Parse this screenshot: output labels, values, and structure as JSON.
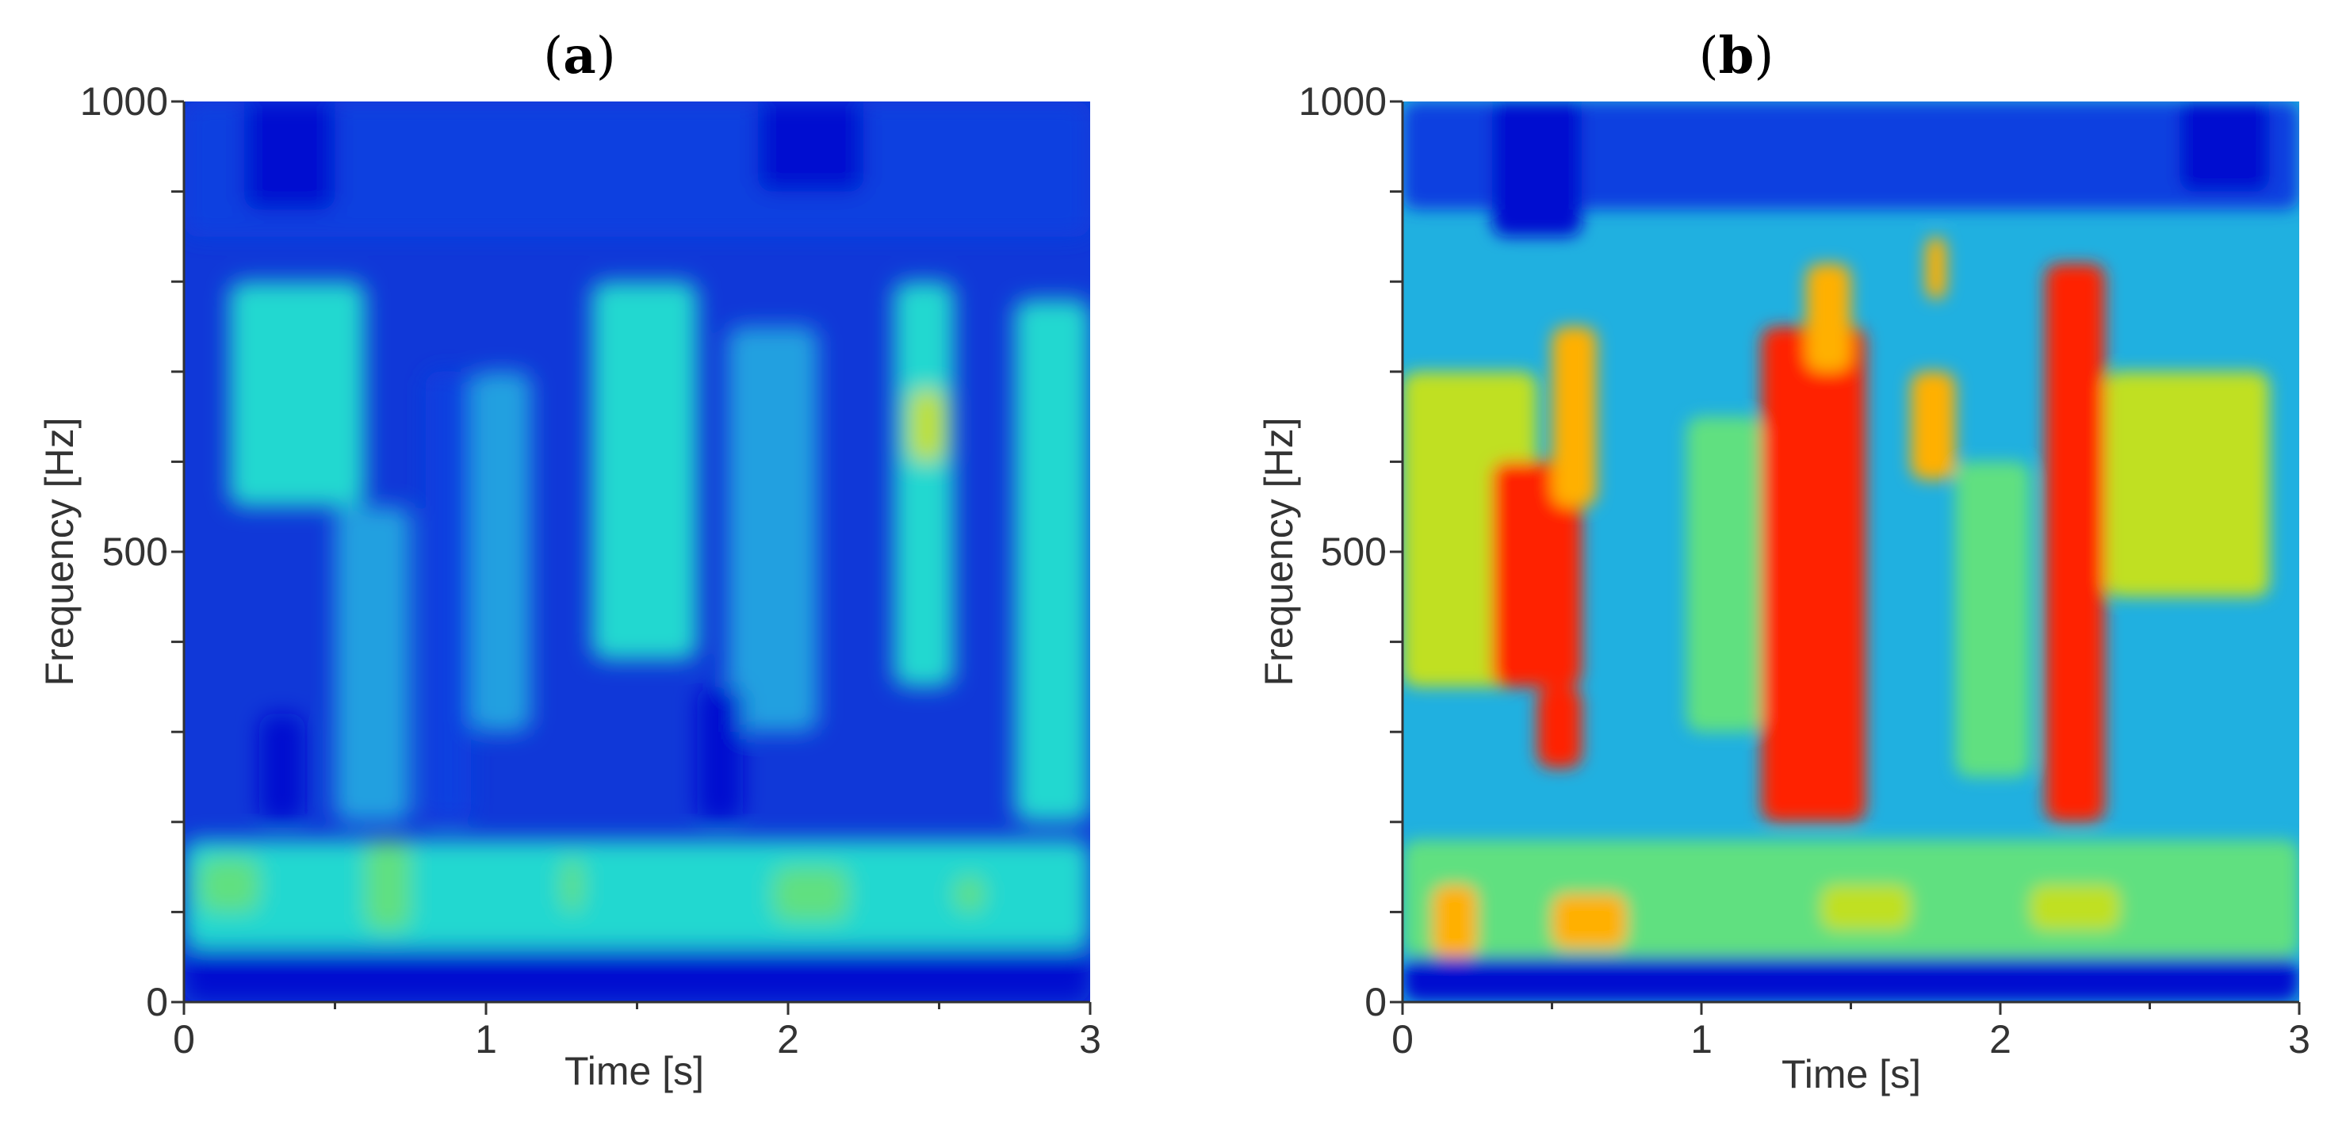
{
  "chart_data": [
    {
      "type": "heatmap",
      "panel_label": "a",
      "xlabel": "Time [s]",
      "ylabel": "Frequency [Hz]",
      "xlim": [
        0,
        3
      ],
      "ylim": [
        0,
        1000
      ],
      "xticks": [
        0,
        1,
        2,
        3
      ],
      "yticks": [
        0,
        500,
        1000
      ],
      "x_tick_labels": [
        "0",
        "1",
        "2",
        "3"
      ],
      "y_tick_labels": [
        "0",
        "500",
        "1000"
      ],
      "colormap": [
        "#0010d0",
        "#1040e0",
        "#20a0e0",
        "#20d8d0",
        "#60e080",
        "#c0e020",
        "#ffb000",
        "#ff2000"
      ],
      "background_color": "#1038d8",
      "regions": [
        {
          "t": [
            0.0,
            3.0
          ],
          "f": [
            0,
            60
          ],
          "level": 0.05
        },
        {
          "t": [
            0.0,
            3.0
          ],
          "f": [
            60,
            180
          ],
          "level": 0.38
        },
        {
          "t": [
            0.05,
            0.25
          ],
          "f": [
            100,
            160
          ],
          "level": 0.5
        },
        {
          "t": [
            0.6,
            0.75
          ],
          "f": [
            80,
            180
          ],
          "level": 0.55
        },
        {
          "t": [
            1.25,
            1.32
          ],
          "f": [
            100,
            160
          ],
          "level": 0.55
        },
        {
          "t": [
            1.95,
            2.2
          ],
          "f": [
            90,
            150
          ],
          "level": 0.6
        },
        {
          "t": [
            2.55,
            2.65
          ],
          "f": [
            100,
            140
          ],
          "level": 0.5
        },
        {
          "t": [
            0.15,
            0.6
          ],
          "f": [
            550,
            800
          ],
          "level": 0.38
        },
        {
          "t": [
            0.5,
            0.75
          ],
          "f": [
            200,
            550
          ],
          "level": 0.35
        },
        {
          "t": [
            0.95,
            1.15
          ],
          "f": [
            300,
            700
          ],
          "level": 0.3
        },
        {
          "t": [
            1.35,
            1.7
          ],
          "f": [
            380,
            800
          ],
          "level": 0.4
        },
        {
          "t": [
            1.8,
            2.1
          ],
          "f": [
            300,
            750
          ],
          "level": 0.32
        },
        {
          "t": [
            2.35,
            2.55
          ],
          "f": [
            350,
            800
          ],
          "level": 0.45
        },
        {
          "t": [
            2.4,
            2.52
          ],
          "f": [
            600,
            680
          ],
          "level": 0.65
        },
        {
          "t": [
            2.75,
            3.0
          ],
          "f": [
            200,
            780
          ],
          "level": 0.4
        },
        {
          "t": [
            0.25,
            0.4
          ],
          "f": [
            200,
            320
          ],
          "level": 0.02
        },
        {
          "t": [
            0.8,
            0.95
          ],
          "f": [
            200,
            700
          ],
          "level": 0.08
        },
        {
          "t": [
            1.7,
            1.85
          ],
          "f": [
            200,
            350
          ],
          "level": 0.05
        },
        {
          "t": [
            0.0,
            3.0
          ],
          "f": [
            850,
            1000
          ],
          "level": 0.12
        },
        {
          "t": [
            0.2,
            0.5
          ],
          "f": [
            880,
            1000
          ],
          "level": 0.02
        },
        {
          "t": [
            1.9,
            2.25
          ],
          "f": [
            900,
            1000
          ],
          "level": 0.02
        }
      ]
    },
    {
      "type": "heatmap",
      "panel_label": "b",
      "xlabel": "Time [s]",
      "ylabel": "Frequency [Hz]",
      "xlim": [
        0,
        3
      ],
      "ylim": [
        0,
        1000
      ],
      "xticks": [
        0,
        1,
        2,
        3
      ],
      "yticks": [
        0,
        500,
        1000
      ],
      "x_tick_labels": [
        "0",
        "1",
        "2",
        "3"
      ],
      "y_tick_labels": [
        "0",
        "500",
        "1000"
      ],
      "colormap": [
        "#0010d0",
        "#1040e0",
        "#20a0e0",
        "#20d8d0",
        "#60e080",
        "#c0e020",
        "#ffb000",
        "#ff2000"
      ],
      "background_color": "#20b0e0",
      "regions": [
        {
          "t": [
            0.0,
            3.0
          ],
          "f": [
            0,
            50
          ],
          "level": 0.05
        },
        {
          "t": [
            0.0,
            3.0
          ],
          "f": [
            50,
            180
          ],
          "level": 0.55
        },
        {
          "t": [
            0.1,
            0.25
          ],
          "f": [
            50,
            130
          ],
          "level": 0.85
        },
        {
          "t": [
            0.5,
            0.75
          ],
          "f": [
            60,
            120
          ],
          "level": 0.85
        },
        {
          "t": [
            1.4,
            1.7
          ],
          "f": [
            80,
            130
          ],
          "level": 0.75
        },
        {
          "t": [
            2.1,
            2.4
          ],
          "f": [
            80,
            130
          ],
          "level": 0.7
        },
        {
          "t": [
            0.0,
            0.45
          ],
          "f": [
            350,
            700
          ],
          "level": 0.75
        },
        {
          "t": [
            0.3,
            0.6
          ],
          "f": [
            350,
            600
          ],
          "level": 0.95
        },
        {
          "t": [
            0.5,
            0.65
          ],
          "f": [
            550,
            750
          ],
          "level": 0.85
        },
        {
          "t": [
            0.45,
            0.6
          ],
          "f": [
            260,
            350
          ],
          "level": 0.95
        },
        {
          "t": [
            1.2,
            1.55
          ],
          "f": [
            200,
            750
          ],
          "level": 0.95
        },
        {
          "t": [
            1.35,
            1.5
          ],
          "f": [
            700,
            820
          ],
          "level": 0.85
        },
        {
          "t": [
            1.7,
            1.85
          ],
          "f": [
            580,
            700
          ],
          "level": 0.9
        },
        {
          "t": [
            1.75,
            1.82
          ],
          "f": [
            780,
            850
          ],
          "level": 0.8
        },
        {
          "t": [
            2.15,
            2.35
          ],
          "f": [
            200,
            820
          ],
          "level": 0.95
        },
        {
          "t": [
            2.35,
            2.9
          ],
          "f": [
            450,
            700
          ],
          "level": 0.65
        },
        {
          "t": [
            0.95,
            1.2
          ],
          "f": [
            300,
            650
          ],
          "level": 0.6
        },
        {
          "t": [
            1.85,
            2.1
          ],
          "f": [
            250,
            600
          ],
          "level": 0.5
        },
        {
          "t": [
            0.0,
            3.0
          ],
          "f": [
            880,
            1000
          ],
          "level": 0.12
        },
        {
          "t": [
            0.3,
            0.6
          ],
          "f": [
            850,
            1000
          ],
          "level": 0.02
        },
        {
          "t": [
            2.6,
            2.9
          ],
          "f": [
            900,
            1000
          ],
          "level": 0.02
        }
      ]
    }
  ]
}
